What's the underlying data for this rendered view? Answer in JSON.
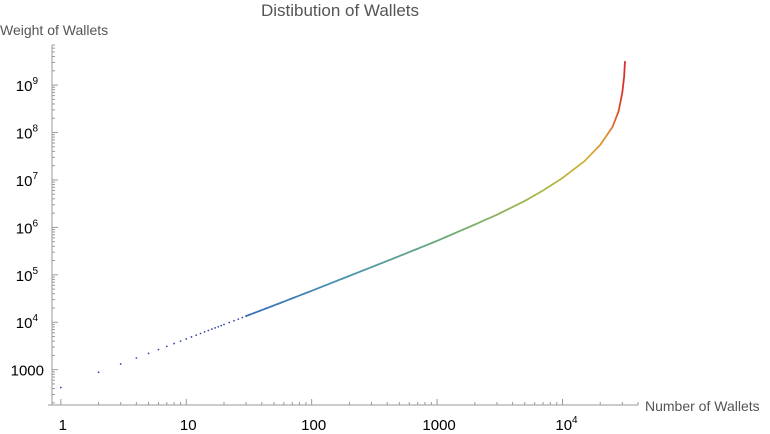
{
  "chart_data": {
    "type": "scatter",
    "title": "Distibution of Wallets",
    "xlabel": "Number of Wallets",
    "ylabel": "Weight of Wallets",
    "x_scale": "log",
    "y_scale": "log",
    "xlim": [
      0.85,
      40000
    ],
    "ylim": [
      180,
      7000000000
    ],
    "x_ticks": [
      {
        "value": 1,
        "base": "1",
        "exp": ""
      },
      {
        "value": 10,
        "base": "10",
        "exp": ""
      },
      {
        "value": 100,
        "base": "100",
        "exp": ""
      },
      {
        "value": 1000,
        "base": "1000",
        "exp": ""
      },
      {
        "value": 10000,
        "base": "10",
        "exp": "4"
      }
    ],
    "y_ticks": [
      {
        "value": 1000,
        "base": "1000",
        "exp": ""
      },
      {
        "value": 10000,
        "base": "10",
        "exp": "4"
      },
      {
        "value": 100000,
        "base": "10",
        "exp": "5"
      },
      {
        "value": 1000000,
        "base": "10",
        "exp": "6"
      },
      {
        "value": 10000000,
        "base": "10",
        "exp": "7"
      },
      {
        "value": 100000000,
        "base": "10",
        "exp": "8"
      },
      {
        "value": 1000000000,
        "base": "10",
        "exp": "9"
      }
    ],
    "points": [
      [
        1,
        420
      ],
      [
        2,
        880
      ],
      [
        3,
        1320
      ],
      [
        4,
        1760
      ],
      [
        5,
        2200
      ],
      [
        6,
        2650
      ],
      [
        7,
        3100
      ],
      [
        8,
        3550
      ],
      [
        9,
        4000
      ],
      [
        10,
        4450
      ],
      [
        11,
        4900
      ],
      [
        12,
        5350
      ],
      [
        13,
        5800
      ],
      [
        14,
        6250
      ],
      [
        15,
        6700
      ],
      [
        16,
        7150
      ],
      [
        17,
        7600
      ],
      [
        18,
        8050
      ],
      [
        19,
        8500
      ],
      [
        20,
        8950
      ],
      [
        22,
        9850
      ],
      [
        24,
        10750
      ],
      [
        26,
        11650
      ],
      [
        28,
        12600
      ],
      [
        30,
        13500
      ]
    ],
    "curve": [
      [
        30,
        13500
      ],
      [
        50,
        22600
      ],
      [
        100,
        46000
      ],
      [
        200,
        95000
      ],
      [
        300,
        145000
      ],
      [
        500,
        248000
      ],
      [
        1000,
        520000
      ],
      [
        2000,
        1150000
      ],
      [
        3000,
        1850000
      ],
      [
        5000,
        3600000
      ],
      [
        7000,
        6000000
      ],
      [
        10000,
        11000000
      ],
      [
        15000,
        25000000
      ],
      [
        20000,
        55000000
      ],
      [
        25000,
        130000000
      ],
      [
        28000,
        280000000
      ],
      [
        30000,
        700000000
      ],
      [
        31000,
        1500000000
      ],
      [
        31500,
        3200000000
      ]
    ],
    "grid": false,
    "legend": "none"
  }
}
